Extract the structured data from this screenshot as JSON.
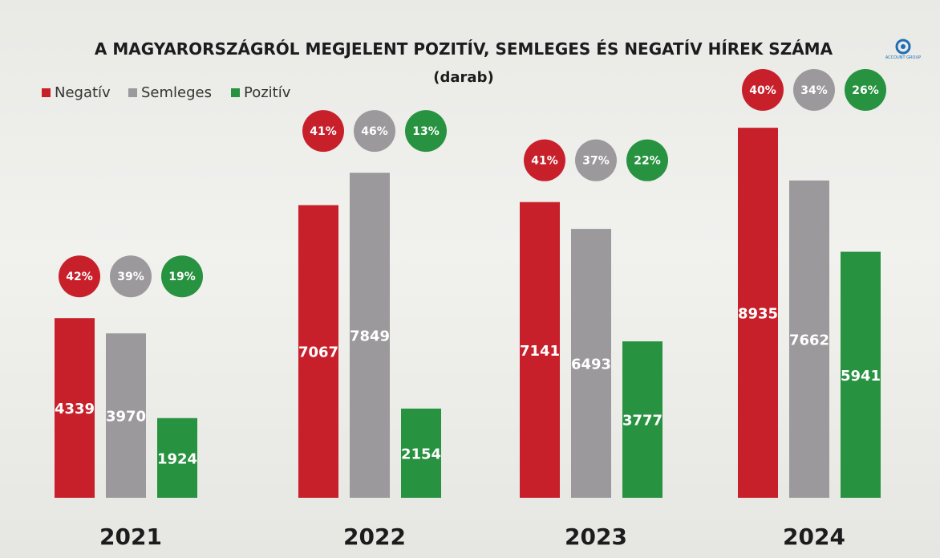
{
  "chart_data": {
    "type": "bar",
    "title": "A MAGYARORSZÁGRÓL MEGJELENT POZITÍV, SEMLEGES ÉS NEGATÍV HÍREK SZÁMA",
    "subtitle": "(darab)",
    "categories": [
      "2021",
      "2022",
      "2023",
      "2024"
    ],
    "legend_position": "top-left",
    "grid": false,
    "ylim": [
      0,
      9500
    ],
    "series": [
      {
        "name": "Negatív",
        "color": "#c8202b",
        "values": [
          4339,
          7067,
          7141,
          8935
        ],
        "shares": [
          "42%",
          "41%",
          "41%",
          "40%"
        ]
      },
      {
        "name": "Semleges",
        "color": "#9c999c",
        "values": [
          3970,
          7849,
          6493,
          7662
        ],
        "shares": [
          "39%",
          "46%",
          "37%",
          "34%"
        ]
      },
      {
        "name": "Pozitív",
        "color": "#27923f",
        "values": [
          1924,
          2154,
          3777,
          5941
        ],
        "shares": [
          "19%",
          "13%",
          "22%",
          "26%"
        ]
      }
    ]
  },
  "logo": {
    "icon": "company-logo-icon",
    "text": "ACCOUNT GROUP"
  }
}
